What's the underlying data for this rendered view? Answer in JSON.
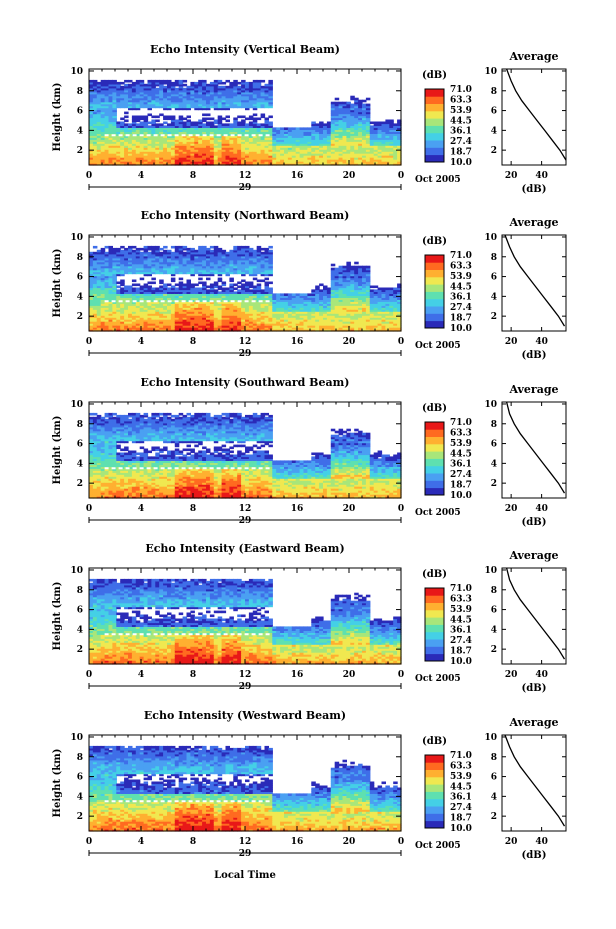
{
  "chart_data": {
    "type": "heatmap",
    "shared": {
      "x_ticks": [
        "0",
        "4",
        "8",
        "12",
        "16",
        "20",
        "0"
      ],
      "xlim": [
        0,
        24
      ],
      "day_label": "29",
      "date_label": "Oct 2005",
      "ylabel": "Height (km)",
      "y_ticks": [
        "2",
        "4",
        "6",
        "8",
        "10"
      ],
      "ylim": [
        0.5,
        10.2
      ],
      "colorbar_unit": "(dB)",
      "colorbar_ticks": [
        "71.0",
        "63.3",
        "53.9",
        "44.5",
        "36.1",
        "27.4",
        "18.7",
        "10.0"
      ],
      "colorbar_range": [
        10.0,
        71.0
      ],
      "xlabel": "Local Time",
      "avg_title": "Average",
      "avg_xlabel": "(dB)",
      "avg_x_ticks": [
        "20",
        "40"
      ],
      "avg_y_ticks": [
        "2",
        "4",
        "6",
        "8",
        "10"
      ],
      "avg_xlim": [
        14,
        56
      ],
      "colormap": [
        "#2a2ab8",
        "#3f6ee8",
        "#4aa0f2",
        "#44d0e6",
        "#5ee0b0",
        "#a8e67a",
        "#f0e850",
        "#ffb030",
        "#ff6a20",
        "#e81818"
      ]
    },
    "panels": [
      {
        "title": "Echo Intensity (Vertical Beam)",
        "profile": [
          [
            56,
            1.0
          ],
          [
            52,
            2.0
          ],
          [
            47,
            3.0
          ],
          [
            42,
            4.0
          ],
          [
            37,
            5.0
          ],
          [
            32,
            6.0
          ],
          [
            27,
            7.0
          ],
          [
            23,
            8.0
          ],
          [
            20,
            9.0
          ],
          [
            17,
            10.2
          ]
        ]
      },
      {
        "title": "Echo Intensity (Northward Beam)",
        "profile": [
          [
            55,
            1.0
          ],
          [
            51,
            2.0
          ],
          [
            46,
            3.0
          ],
          [
            41,
            4.0
          ],
          [
            36,
            5.0
          ],
          [
            31,
            6.0
          ],
          [
            26,
            7.0
          ],
          [
            22,
            8.0
          ],
          [
            19,
            9.0
          ],
          [
            16,
            10.2
          ]
        ]
      },
      {
        "title": "Echo Intensity (Southward Beam)",
        "profile": [
          [
            55,
            1.0
          ],
          [
            51,
            2.0
          ],
          [
            46,
            3.0
          ],
          [
            41,
            4.0
          ],
          [
            36,
            5.0
          ],
          [
            31,
            6.0
          ],
          [
            26,
            7.0
          ],
          [
            22,
            8.0
          ],
          [
            19,
            9.0
          ],
          [
            17,
            10.2
          ]
        ]
      },
      {
        "title": "Echo Intensity (Eastward Beam)",
        "profile": [
          [
            55,
            1.0
          ],
          [
            51,
            2.0
          ],
          [
            46,
            3.0
          ],
          [
            41,
            4.0
          ],
          [
            36,
            5.0
          ],
          [
            31,
            6.0
          ],
          [
            26,
            7.0
          ],
          [
            22,
            8.0
          ],
          [
            19,
            9.0
          ],
          [
            17,
            10.2
          ]
        ]
      },
      {
        "title": "Echo Intensity (Westward Beam)",
        "profile": [
          [
            55,
            1.0
          ],
          [
            51,
            2.0
          ],
          [
            46,
            3.0
          ],
          [
            41,
            4.0
          ],
          [
            36,
            5.0
          ],
          [
            31,
            6.0
          ],
          [
            26,
            7.0
          ],
          [
            22,
            8.0
          ],
          [
            19,
            9.0
          ],
          [
            16,
            10.2
          ]
        ]
      }
    ]
  }
}
